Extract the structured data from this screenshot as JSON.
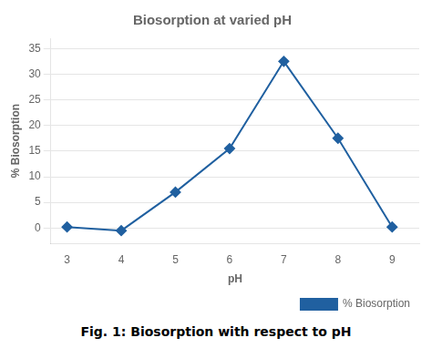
{
  "chart_data": {
    "type": "line",
    "title": "Biosorption at varied pH",
    "x_label": "pH",
    "y_label": "% Biosorption",
    "caption": "Fig. 1: Biosorption with respect to pH",
    "x": [
      3,
      4,
      5,
      6,
      7,
      8,
      9
    ],
    "series": [
      {
        "name": "% Biosorption",
        "color": "#2060A0",
        "marker": "diamond",
        "values": [
          0.2,
          -0.5,
          7,
          15.5,
          32.5,
          17.5,
          0.2
        ]
      }
    ],
    "xlim": [
      2.7,
      9.5
    ],
    "xticks": [
      3,
      4,
      5,
      6,
      7,
      8,
      9
    ],
    "ylim": [
      -3,
      37
    ],
    "yticks": [
      0,
      5,
      10,
      15,
      20,
      25,
      30,
      35
    ],
    "grid": "y",
    "legend": "lower right"
  }
}
